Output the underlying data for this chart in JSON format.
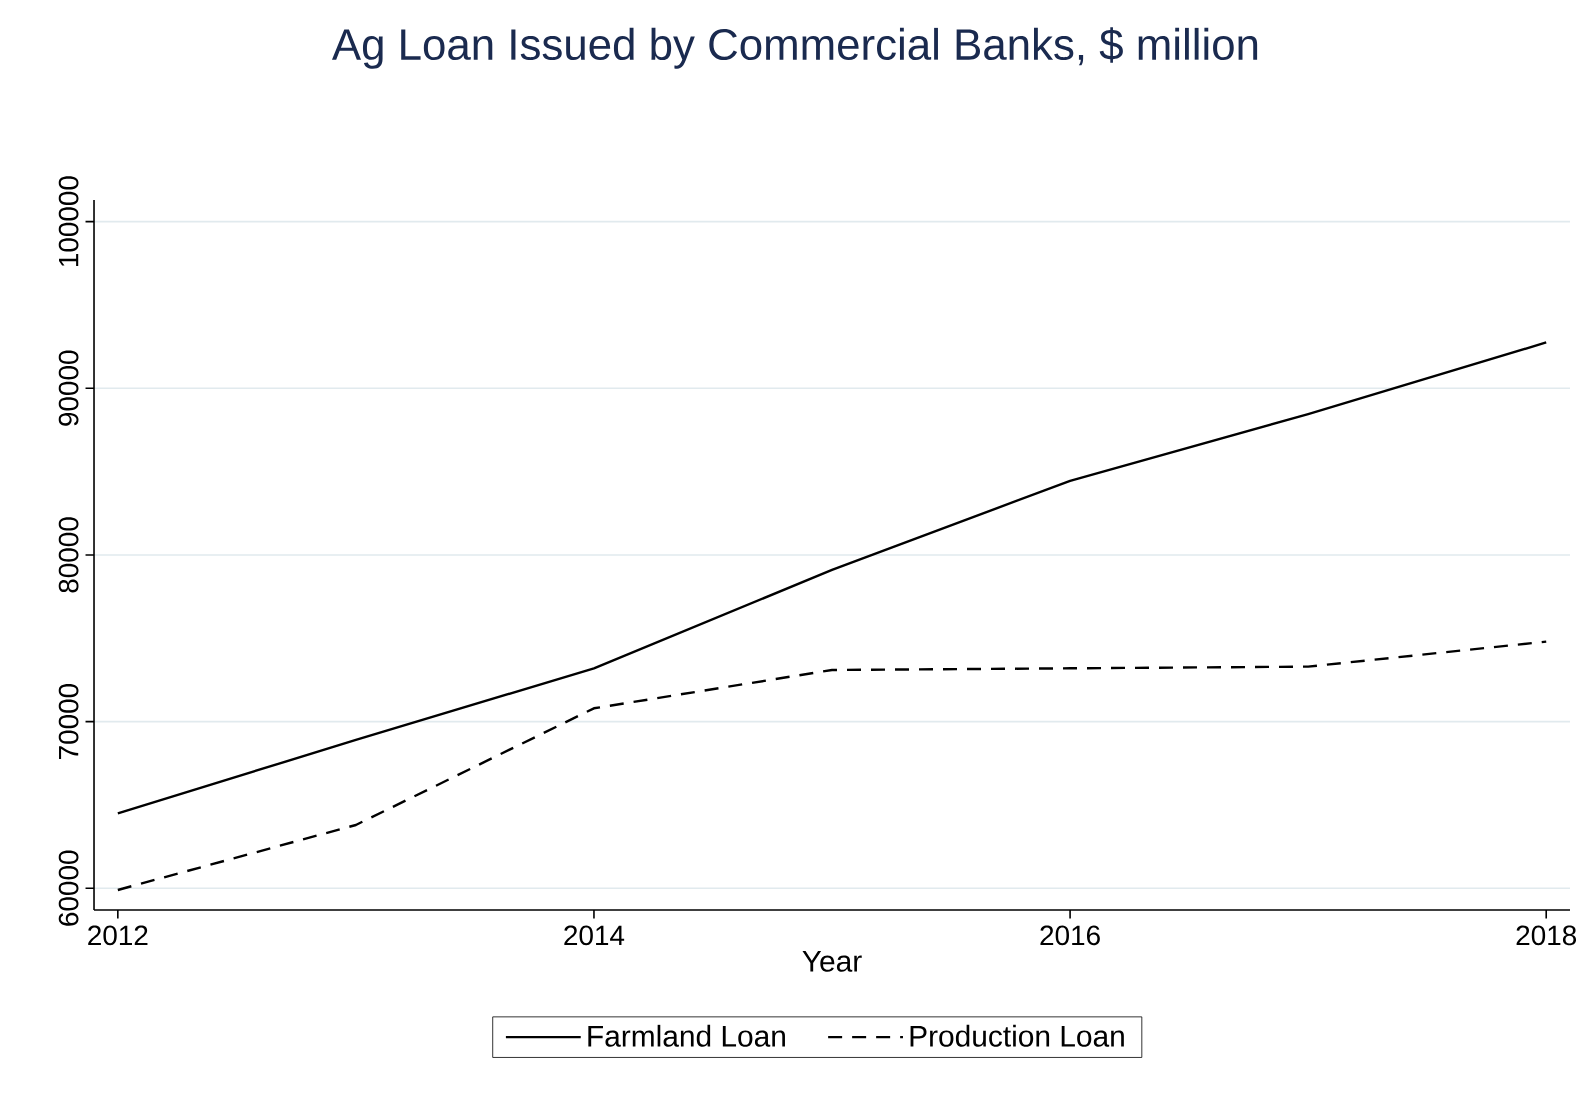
{
  "chart_data": {
    "type": "line",
    "title": "Ag Loan Issued by Commercial Banks, $ million",
    "xlabel": "Year",
    "x": [
      2012,
      2013,
      2014,
      2015,
      2016,
      2017,
      2018
    ],
    "series": [
      {
        "name": "Farmland Loan",
        "color": "#000000",
        "line_style": "solid",
        "values": [
          64500,
          68900,
          73200,
          79100,
          84450,
          88450,
          92750
        ]
      },
      {
        "name": "Production Loan",
        "color": "#000000",
        "line_style": "dashed",
        "values": [
          59900,
          63800,
          70800,
          73100,
          73200,
          73300,
          74800
        ]
      }
    ],
    "xlim": [
      2011.9,
      2018.1
    ],
    "xticks": [
      2012,
      2014,
      2016,
      2018
    ],
    "ylim": [
      58700,
      101300
    ],
    "yticks": [
      60000,
      70000,
      80000,
      90000,
      100000
    ],
    "grid": "y",
    "legend": "bottom"
  }
}
